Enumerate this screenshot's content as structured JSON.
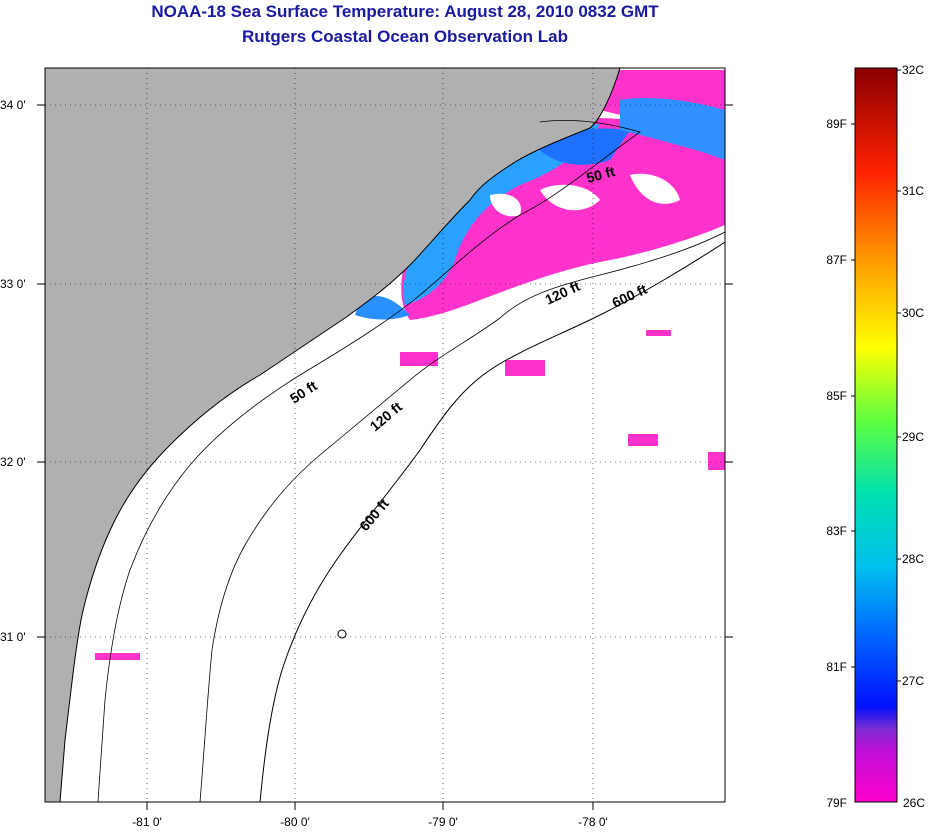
{
  "title": "NOAA-18 Sea Surface Temperature:  August 28, 2010 0832 GMT",
  "subtitle": "Rutgers Coastal Ocean Observation Lab",
  "map": {
    "lon_ticks": [
      "-81 0'",
      "-80 0'",
      "-79 0'",
      "-78 0'"
    ],
    "lat_ticks": [
      "34 0'",
      "33 0'",
      "32 0'",
      "31 0'"
    ],
    "land_color": "#b0b0b0",
    "ocean_color": "#ffffff",
    "contour_labels": [
      {
        "text": "50 ft"
      },
      {
        "text": "50 ft"
      },
      {
        "text": "120 ft"
      },
      {
        "text": "120 ft"
      },
      {
        "text": "600 ft"
      },
      {
        "text": "600 ft"
      }
    ]
  },
  "colorbar": {
    "celsius": [
      "32C",
      "31C",
      "30C",
      "29C",
      "28C",
      "27C",
      "26C"
    ],
    "fahrenheit": [
      "89F",
      "87F",
      "85F",
      "83F",
      "81F",
      "79F"
    ],
    "colors": [
      "#ff00cc",
      "#7a2cd0",
      "#0010ff",
      "#0090ff",
      "#00e0e0",
      "#40ff80",
      "#ffff00",
      "#ff9900",
      "#ff2000",
      "#8a0000"
    ]
  }
}
